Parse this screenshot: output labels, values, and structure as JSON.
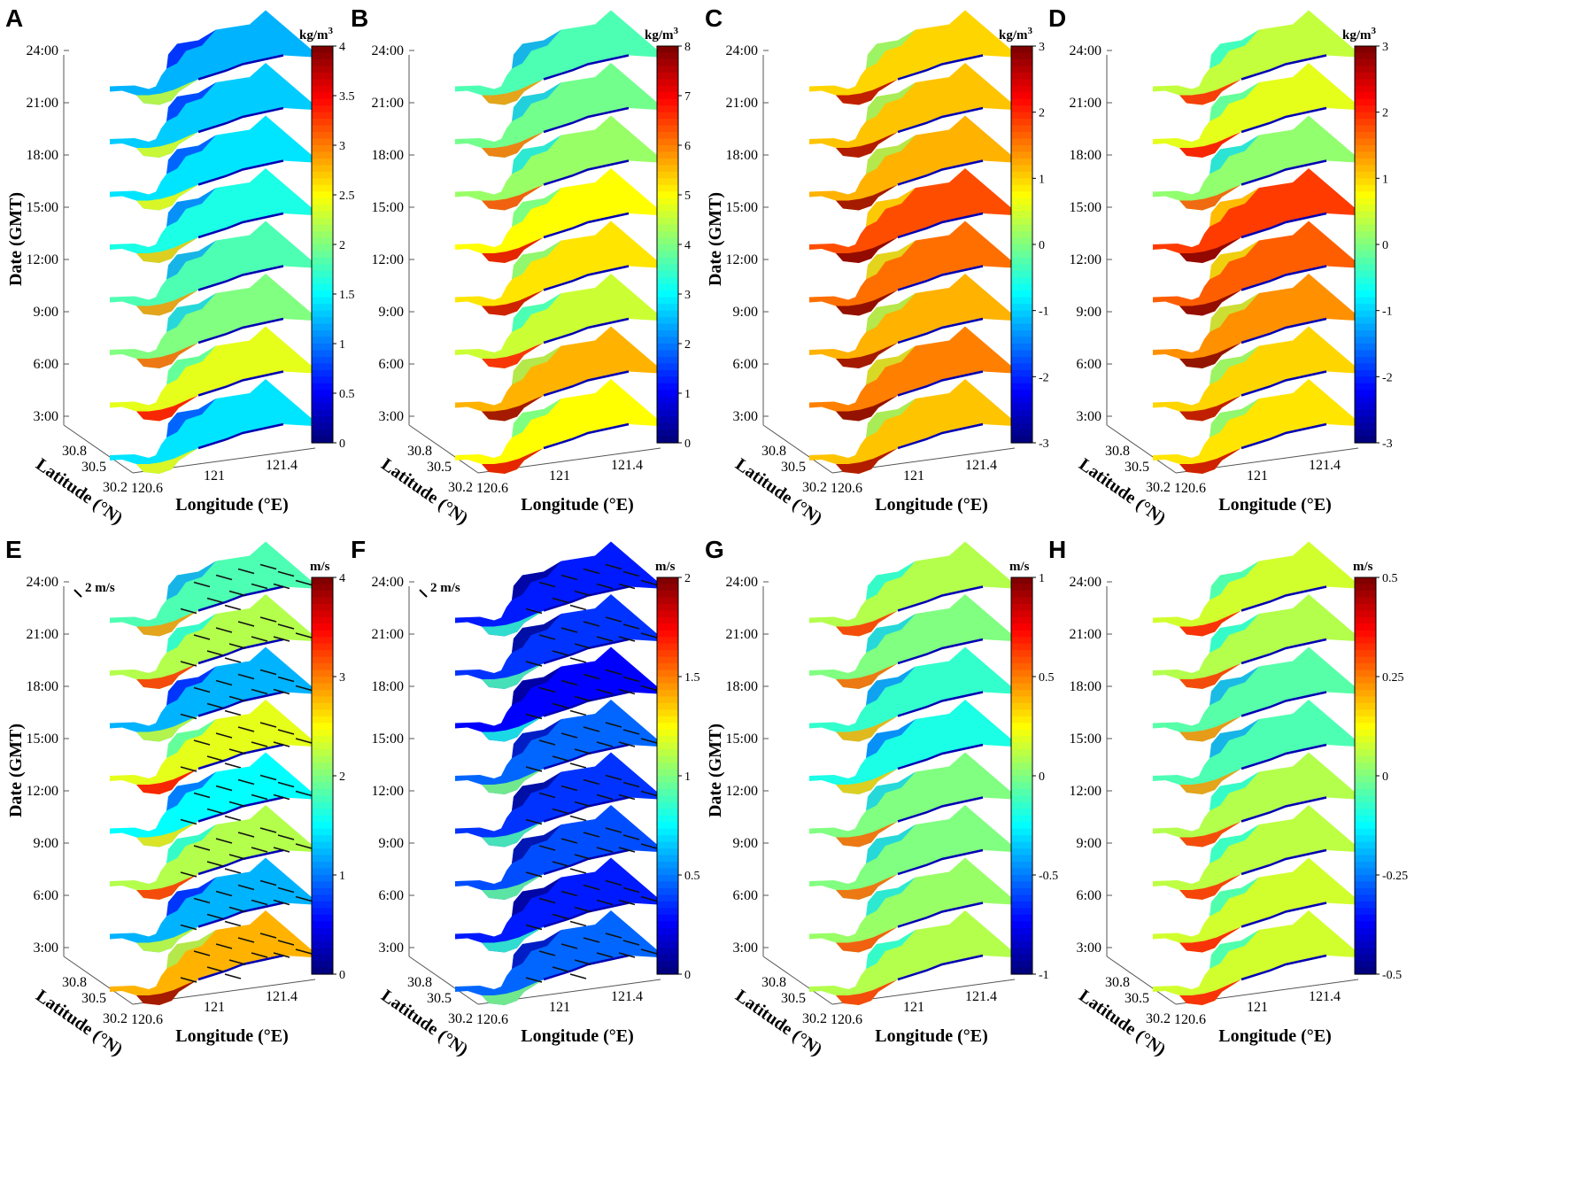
{
  "figure": {
    "time_axis_label": "Date (GMT)",
    "lat_axis_label": "Latitude (°N)",
    "lon_axis_label": "Longitude (°E)",
    "time_ticks": [
      "3:00",
      "6:00",
      "9:00",
      "12:00",
      "15:00",
      "18:00",
      "21:00",
      "24:00"
    ],
    "lat_ticks": [
      "30.8",
      "30.5",
      "30.2"
    ],
    "lon_ticks": [
      "120.6",
      "121",
      "121.4"
    ],
    "arrow_color": "#111111"
  },
  "chart_data": [
    {
      "type": "heatmap",
      "panel": "A",
      "unit": "kg/m3",
      "colorbar": {
        "range": [
          0,
          4
        ],
        "ticks": [
          "4",
          "3.5",
          "3",
          "2.5",
          "2",
          "1.5",
          "1",
          "0.5",
          "0"
        ]
      },
      "time_ticks": [
        "3:00",
        "6:00",
        "9:00",
        "12:00",
        "15:00",
        "18:00",
        "21:00",
        "24:00"
      ],
      "slice_level": [
        1.4,
        2.4,
        2.0,
        1.8,
        1.6,
        1.4,
        1.3,
        1.2
      ],
      "show_time_label": true,
      "show_vectors": false
    },
    {
      "type": "heatmap",
      "panel": "B",
      "unit": "kg/m3",
      "colorbar": {
        "range": [
          0,
          8
        ],
        "ticks": [
          "8",
          "7",
          "6",
          "5",
          "4",
          "3",
          "2",
          "1",
          "0"
        ]
      },
      "time_ticks": [
        "3:00",
        "6:00",
        "9:00",
        "12:00",
        "15:00",
        "18:00",
        "21:00",
        "24:00"
      ],
      "slice_level": [
        5.0,
        5.6,
        4.6,
        5.2,
        5.0,
        4.2,
        3.9,
        3.6
      ],
      "show_time_label": false,
      "show_vectors": false
    },
    {
      "type": "heatmap",
      "panel": "C",
      "unit": "kg/m3",
      "colorbar": {
        "range": [
          -3,
          3
        ],
        "ticks": [
          "3",
          "2",
          "1",
          "0",
          "-1",
          "-2",
          "-3"
        ]
      },
      "time_ticks": [
        "3:00",
        "6:00",
        "9:00",
        "12:00",
        "15:00",
        "18:00",
        "21:00",
        "24:00"
      ],
      "slice_level": [
        1.1,
        1.5,
        1.2,
        1.6,
        1.8,
        1.2,
        1.1,
        1.0
      ],
      "show_time_label": true,
      "show_vectors": false
    },
    {
      "type": "heatmap",
      "panel": "D",
      "unit": "kg/m3",
      "colorbar": {
        "range": [
          -3,
          3
        ],
        "ticks": [
          "3",
          "2",
          "1",
          "0",
          "-1",
          "-2",
          "-3"
        ]
      },
      "time_ticks": [
        "3:00",
        "6:00",
        "9:00",
        "12:00",
        "15:00",
        "18:00",
        "21:00",
        "24:00"
      ],
      "slice_level": [
        0.9,
        1.0,
        1.4,
        1.7,
        1.9,
        0.1,
        0.6,
        0.4
      ],
      "show_time_label": false,
      "show_vectors": false
    },
    {
      "type": "heatmap",
      "panel": "E",
      "unit": "m/s",
      "colorbar": {
        "range": [
          0,
          4
        ],
        "ticks": [
          "4",
          "3",
          "2",
          "1",
          "0"
        ]
      },
      "time_ticks": [
        "3:00",
        "6:00",
        "9:00",
        "12:00",
        "15:00",
        "18:00",
        "21:00",
        "24:00"
      ],
      "slice_level": [
        2.8,
        1.2,
        2.2,
        1.5,
        2.4,
        1.2,
        2.2,
        1.8
      ],
      "show_time_label": true,
      "show_vectors": true,
      "reference_vector": "2 m/s"
    },
    {
      "type": "heatmap",
      "panel": "F",
      "unit": "m/s",
      "colorbar": {
        "range": [
          0,
          2
        ],
        "ticks": [
          "2",
          "1.5",
          "1",
          "0.5",
          "0"
        ]
      },
      "time_ticks": [
        "3:00",
        "6:00",
        "9:00",
        "12:00",
        "15:00",
        "18:00",
        "21:00",
        "24:00"
      ],
      "slice_level": [
        0.45,
        0.3,
        0.4,
        0.35,
        0.45,
        0.25,
        0.35,
        0.3
      ],
      "show_time_label": false,
      "show_vectors": true,
      "reference_vector": "2 m/s"
    },
    {
      "type": "heatmap",
      "panel": "G",
      "unit": "m/s",
      "colorbar": {
        "range": [
          -1,
          1
        ],
        "ticks": [
          "1",
          "0.5",
          "0",
          "-0.5",
          "-1"
        ]
      },
      "time_ticks": [
        "3:00",
        "6:00",
        "9:00",
        "12:00",
        "15:00",
        "18:00",
        "21:00",
        "24:00"
      ],
      "slice_level": [
        0.1,
        0.05,
        0.0,
        0.0,
        -0.2,
        -0.15,
        0.0,
        0.1
      ],
      "show_time_label": true,
      "show_vectors": false
    },
    {
      "type": "heatmap",
      "panel": "H",
      "unit": "m/s",
      "colorbar": {
        "range": [
          -0.5,
          0.5
        ],
        "ticks": [
          "0.5",
          "0.25",
          "0",
          "-0.25",
          "-0.5"
        ]
      },
      "time_ticks": [
        "3:00",
        "6:00",
        "9:00",
        "12:00",
        "15:00",
        "18:00",
        "21:00",
        "24:00"
      ],
      "slice_level": [
        0.08,
        0.08,
        0.06,
        0.05,
        -0.05,
        -0.04,
        0.05,
        0.08
      ],
      "show_time_label": false,
      "show_vectors": false
    }
  ]
}
